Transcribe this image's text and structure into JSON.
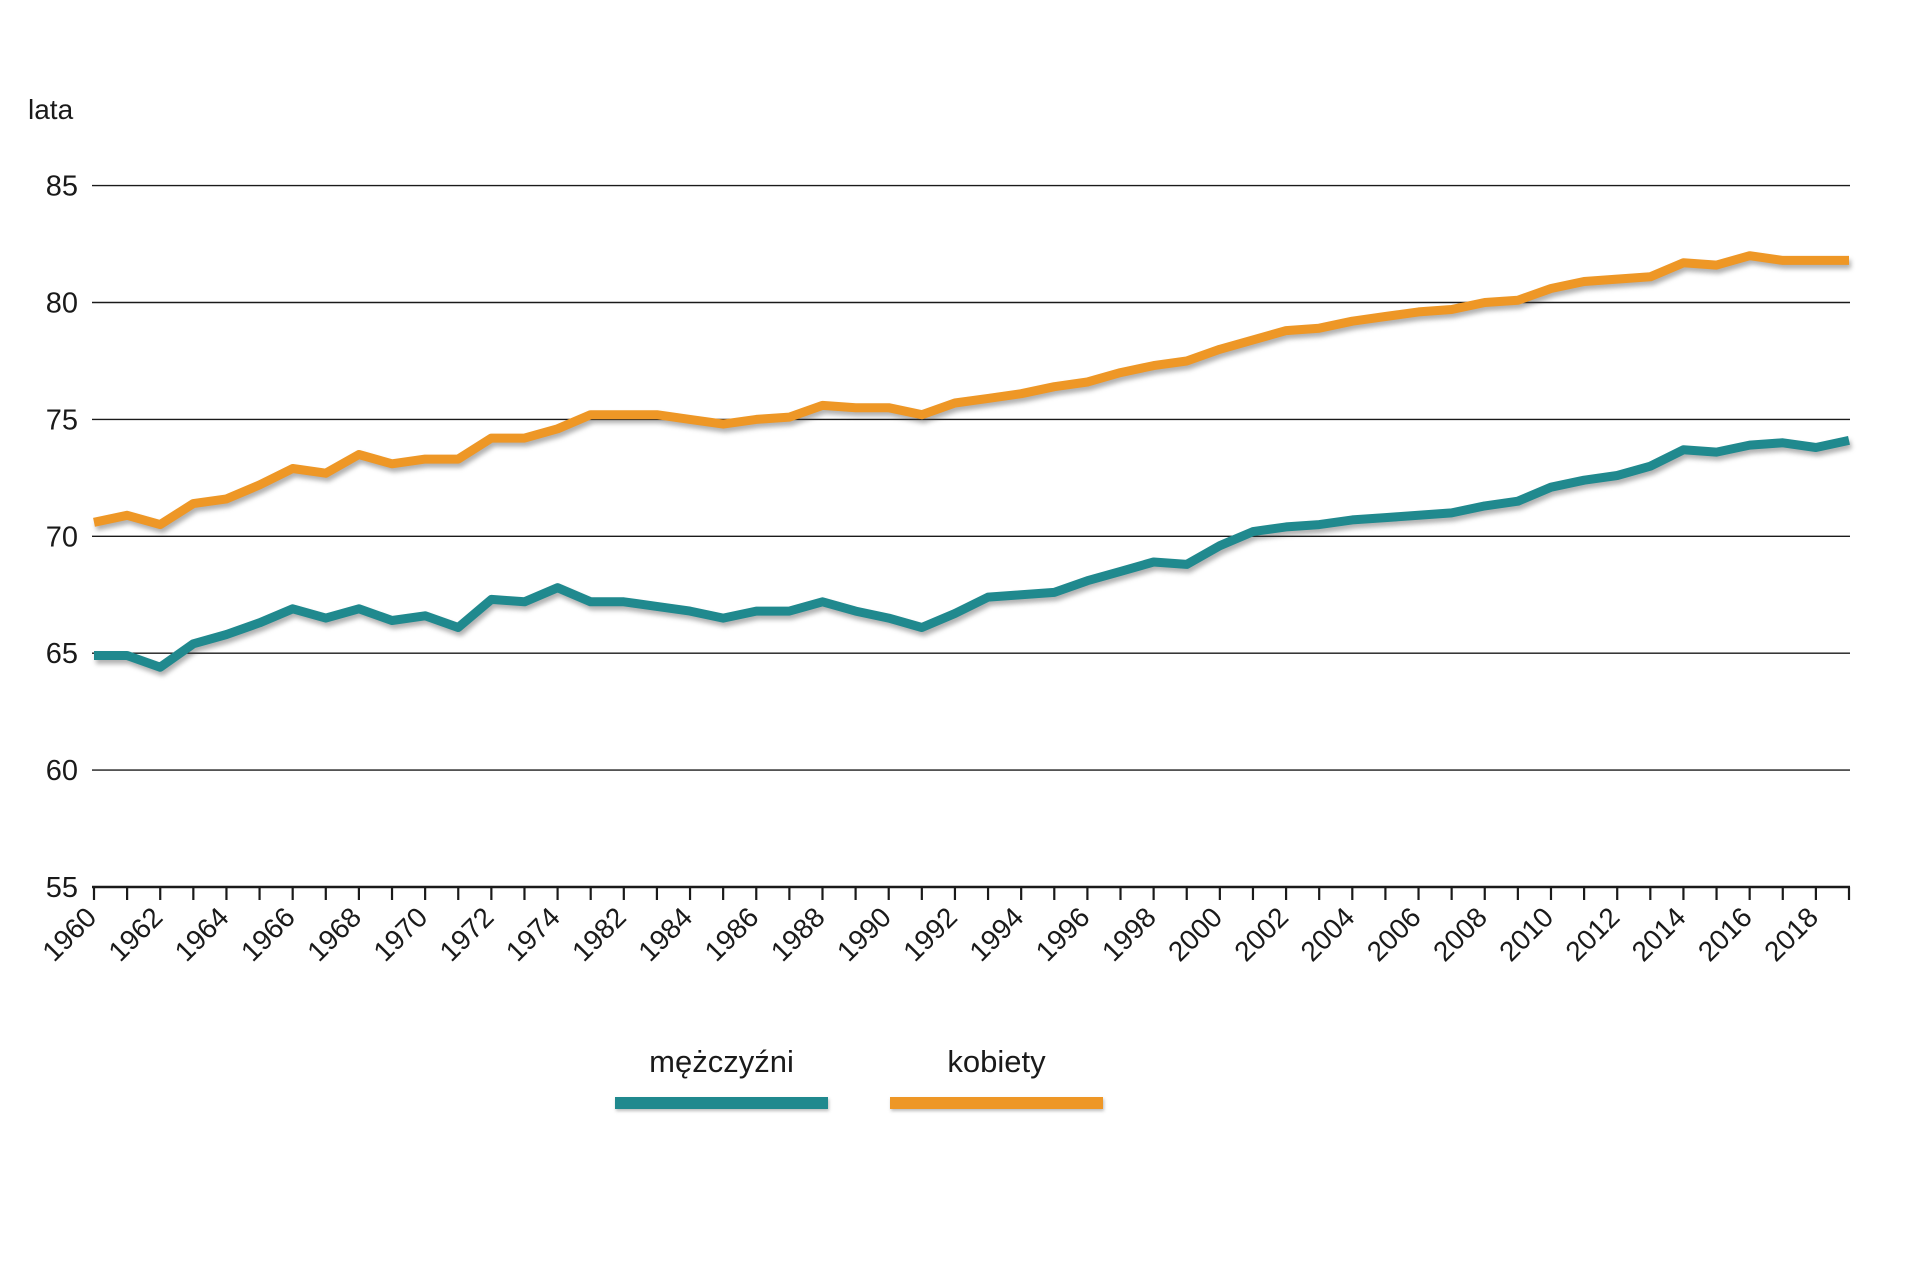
{
  "page": {
    "background_color": "#ffffff",
    "text_color": "#1a1a1a"
  },
  "chart_data": {
    "type": "line",
    "title": "",
    "ylabel": "lata",
    "xlabel": "",
    "ylim": [
      55,
      85
    ],
    "yticks": [
      55,
      60,
      65,
      70,
      75,
      80,
      85
    ],
    "grid": "horizontal gridlines at every ytick, x-axis baseline at 55 with year ticks",
    "legend_position": "bottom-center",
    "x_note": "ticks every data year, labels every second year; years 1975-1980 not present in data",
    "x": [
      1960,
      1961,
      1962,
      1963,
      1964,
      1965,
      1966,
      1967,
      1968,
      1969,
      1970,
      1971,
      1972,
      1973,
      1974,
      1981,
      1982,
      1983,
      1984,
      1985,
      1986,
      1987,
      1988,
      1989,
      1990,
      1991,
      1992,
      1993,
      1994,
      1995,
      1996,
      1997,
      1998,
      1999,
      2000,
      2001,
      2002,
      2003,
      2004,
      2005,
      2006,
      2007,
      2008,
      2009,
      2010,
      2011,
      2012,
      2013,
      2014,
      2015,
      2016,
      2017,
      2018,
      2019
    ],
    "x_labeled_ticks": [
      1960,
      1962,
      1964,
      1966,
      1968,
      1970,
      1972,
      1974,
      1982,
      1984,
      1986,
      1988,
      1990,
      1992,
      1994,
      1996,
      1998,
      2000,
      2002,
      2004,
      2006,
      2008,
      2010,
      2012,
      2014,
      2016,
      2018
    ],
    "series": [
      {
        "name": "mężczyźni",
        "color": "#20898E",
        "values": [
          64.9,
          64.9,
          64.4,
          65.4,
          65.8,
          66.3,
          66.9,
          66.5,
          66.9,
          66.4,
          66.6,
          66.1,
          67.3,
          67.2,
          67.8,
          67.2,
          67.2,
          67.0,
          66.8,
          66.5,
          66.8,
          66.8,
          67.2,
          66.8,
          66.5,
          66.1,
          66.7,
          67.4,
          67.5,
          67.6,
          68.1,
          68.5,
          68.9,
          68.8,
          69.6,
          70.2,
          70.4,
          70.5,
          70.7,
          70.8,
          70.9,
          71.0,
          71.3,
          71.5,
          72.1,
          72.4,
          72.6,
          73.0,
          73.7,
          73.6,
          73.9,
          74.0,
          73.8,
          74.1
        ]
      },
      {
        "name": "kobiety",
        "color": "#EE9726",
        "values": [
          70.6,
          70.9,
          70.5,
          71.4,
          71.6,
          72.2,
          72.9,
          72.7,
          73.5,
          73.1,
          73.3,
          73.3,
          74.2,
          74.2,
          74.6,
          75.2,
          75.2,
          75.2,
          75.0,
          74.8,
          75.0,
          75.1,
          75.6,
          75.5,
          75.5,
          75.2,
          75.7,
          75.9,
          76.1,
          76.4,
          76.6,
          77.0,
          77.3,
          77.5,
          78.0,
          78.4,
          78.8,
          78.9,
          79.2,
          79.4,
          79.6,
          79.7,
          80.0,
          80.1,
          80.6,
          80.9,
          81.0,
          81.1,
          81.7,
          81.6,
          82.0,
          81.8,
          81.8,
          81.8
        ]
      }
    ]
  }
}
